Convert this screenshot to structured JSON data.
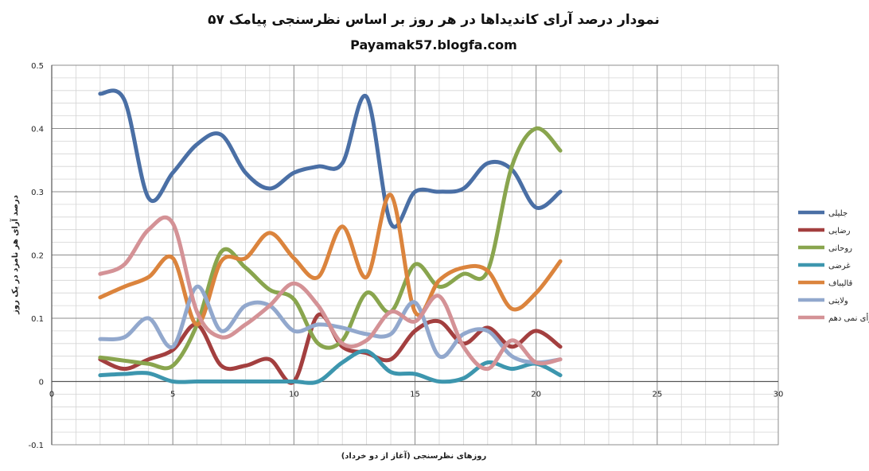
{
  "chart_data": {
    "type": "line",
    "title": "نمودار درصد آرای کاندیداها در هر روز بر اساس نظرسنجی پیامک ۵۷",
    "subtitle": "Payamak57.blogfa.com",
    "xlabel": "روزهای نظرسنجی (آغاز از دو خرداد)",
    "ylabel": "درصد آرای هر نامزد در یک روز",
    "xlim": [
      0,
      30
    ],
    "ylim": [
      -0.1,
      0.5
    ],
    "x_ticks": [
      "0",
      "5",
      "10",
      "15",
      "20",
      "25",
      "30"
    ],
    "y_ticks": [
      "-0.1",
      "0",
      "0.1",
      "0.2",
      "0.3",
      "0.4",
      "0.5"
    ],
    "grid": true,
    "legend_position": "right",
    "x": [
      2,
      3,
      4,
      5,
      6,
      7,
      8,
      9,
      10,
      11,
      12,
      13,
      14,
      15,
      16,
      17,
      18,
      19,
      20,
      21
    ],
    "series": [
      {
        "name": "جلیلی",
        "color": "#4a6fa5",
        "values": [
          0.455,
          0.445,
          0.29,
          0.33,
          0.375,
          0.39,
          0.33,
          0.305,
          0.33,
          0.34,
          0.345,
          0.45,
          0.25,
          0.3,
          0.3,
          0.305,
          0.345,
          0.335,
          0.275,
          0.3
        ]
      },
      {
        "name": "رضایی",
        "color": "#a33f3f",
        "values": [
          0.035,
          0.02,
          0.035,
          0.05,
          0.09,
          0.025,
          0.025,
          0.035,
          0.0,
          0.105,
          0.055,
          0.045,
          0.035,
          0.08,
          0.095,
          0.06,
          0.085,
          0.055,
          0.08,
          0.055
        ]
      },
      {
        "name": "روحانی",
        "color": "#89a54e",
        "values": [
          0.038,
          0.033,
          0.028,
          0.025,
          0.09,
          0.205,
          0.18,
          0.145,
          0.13,
          0.06,
          0.065,
          0.14,
          0.11,
          0.185,
          0.15,
          0.17,
          0.175,
          0.34,
          0.4,
          0.365
        ]
      },
      {
        "name": "غرضی",
        "color": "#3d96ae",
        "values": [
          0.01,
          0.012,
          0.013,
          0.0,
          0.0,
          0.0,
          0.0,
          0.0,
          0.0,
          0.0,
          0.03,
          0.048,
          0.015,
          0.012,
          0.0,
          0.005,
          0.03,
          0.02,
          0.028,
          0.01
        ]
      },
      {
        "name": "قالیباف",
        "color": "#db843d",
        "values": [
          0.133,
          0.15,
          0.165,
          0.195,
          0.09,
          0.19,
          0.195,
          0.235,
          0.195,
          0.165,
          0.245,
          0.165,
          0.295,
          0.11,
          0.16,
          0.18,
          0.175,
          0.115,
          0.14,
          0.19
        ]
      },
      {
        "name": "ولایتی",
        "color": "#92a8cd",
        "values": [
          0.067,
          0.07,
          0.1,
          0.055,
          0.15,
          0.08,
          0.12,
          0.12,
          0.08,
          0.09,
          0.085,
          0.075,
          0.075,
          0.125,
          0.04,
          0.075,
          0.08,
          0.04,
          0.03,
          0.035
        ]
      },
      {
        "name": "رأی نمی دهم",
        "color": "#d49296",
        "values": [
          0.17,
          0.185,
          0.24,
          0.25,
          0.11,
          0.07,
          0.09,
          0.12,
          0.155,
          0.12,
          0.06,
          0.065,
          0.11,
          0.095,
          0.135,
          0.055,
          0.02,
          0.065,
          0.03,
          0.035
        ]
      }
    ]
  }
}
